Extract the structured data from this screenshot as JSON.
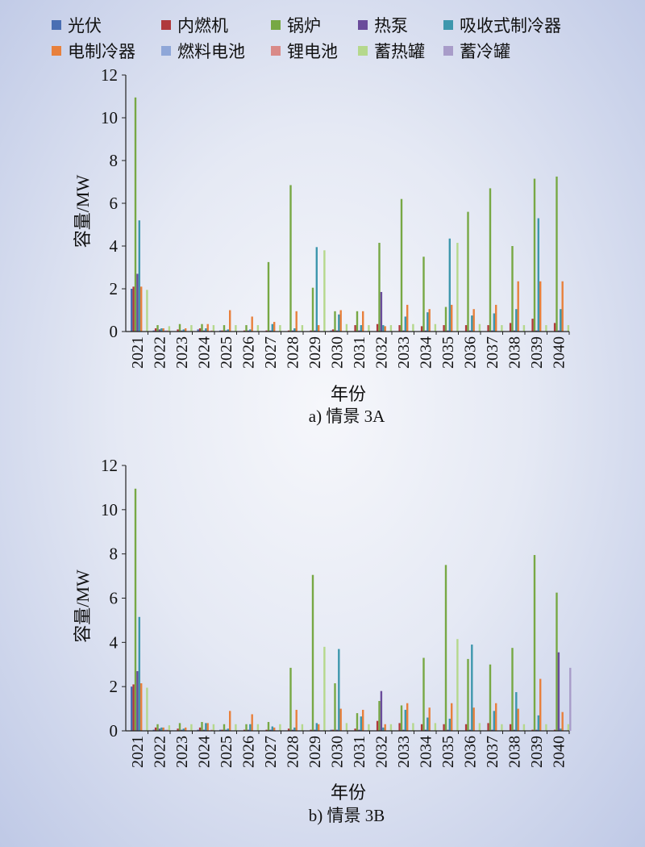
{
  "legend": [
    {
      "name": "光伏",
      "color": "#4a6fb3"
    },
    {
      "name": "内燃机",
      "color": "#b0393c"
    },
    {
      "name": "锅炉",
      "color": "#77a844"
    },
    {
      "name": "热泵",
      "color": "#6a4c9b"
    },
    {
      "name": "吸收式制冷器",
      "color": "#3e97ad"
    },
    {
      "name": "电制冷器",
      "color": "#e8803c"
    },
    {
      "name": "燃料电池",
      "color": "#8fa7d8"
    },
    {
      "name": "锂电池",
      "color": "#d98a88"
    },
    {
      "name": "蓄热罐",
      "color": "#b5d88c"
    },
    {
      "name": "蓄冷罐",
      "color": "#a89cc9"
    }
  ],
  "chart_data": [
    {
      "type": "bar",
      "caption": "a) 情景 3A",
      "xlabel": "年份",
      "ylabel": "容量/MW",
      "ylim": [
        0,
        12
      ],
      "yticks": [
        "0",
        "2",
        "4",
        "6",
        "8",
        "10",
        "12"
      ],
      "categories": [
        "2021",
        "2022",
        "2023",
        "2024",
        "2025",
        "2026",
        "2027",
        "2028",
        "2029",
        "2030",
        "2031",
        "2032",
        "2033",
        "2034",
        "2035",
        "2036",
        "2037",
        "2038",
        "2039",
        "2040"
      ],
      "series": [
        {
          "name": "光伏",
          "values": [
            2.0,
            0.05,
            0,
            0.1,
            0.05,
            0,
            0,
            0,
            0,
            0.05,
            0,
            0,
            0,
            0,
            0,
            0,
            0,
            0,
            0,
            0
          ]
        },
        {
          "name": "内燃机",
          "values": [
            2.1,
            0.15,
            0.1,
            0.15,
            0.05,
            0.05,
            0.05,
            0.05,
            0.05,
            0.1,
            0.3,
            0.35,
            0.3,
            0.25,
            0.3,
            0.3,
            0.3,
            0.4,
            0.6,
            0.4
          ]
        },
        {
          "name": "锅炉",
          "values": [
            10.95,
            0.3,
            0.35,
            0.35,
            0.3,
            0.3,
            3.25,
            6.85,
            2.05,
            0.95,
            0.95,
            4.15,
            6.2,
            3.5,
            1.15,
            5.6,
            6.7,
            4.0,
            7.15,
            7.25
          ]
        },
        {
          "name": "热泵",
          "values": [
            2.7,
            0.1,
            0.05,
            0.05,
            0.05,
            0.05,
            0.05,
            0.05,
            0.05,
            0.05,
            0.05,
            1.85,
            0.05,
            0.05,
            0.05,
            0.05,
            0.05,
            0.05,
            0.05,
            0.05
          ]
        },
        {
          "name": "吸收式制冷器",
          "values": [
            5.2,
            0.15,
            0.1,
            0.15,
            0.1,
            0.1,
            0.35,
            0.15,
            3.95,
            0.8,
            0.3,
            0.3,
            0.7,
            0.9,
            4.35,
            0.75,
            0.85,
            1.05,
            5.3,
            1.05
          ]
        },
        {
          "name": "电制冷器",
          "values": [
            2.1,
            0.15,
            0.15,
            0.35,
            1.0,
            0.7,
            0.45,
            0.95,
            0.3,
            1.0,
            0.95,
            0.25,
            1.25,
            1.05,
            1.25,
            1.05,
            1.25,
            2.35,
            2.35,
            2.35
          ]
        },
        {
          "name": "燃料电池",
          "values": [
            0,
            0.05,
            0,
            0,
            0,
            0,
            0,
            0,
            0,
            0,
            0,
            0,
            0,
            0,
            0,
            0,
            0,
            0,
            0,
            0
          ]
        },
        {
          "name": "锂电池",
          "values": [
            0,
            0.05,
            0,
            0.05,
            0,
            0,
            0,
            0,
            0,
            0,
            0,
            0,
            0,
            0,
            0,
            0,
            0,
            0,
            0,
            0
          ]
        },
        {
          "name": "蓄热罐",
          "values": [
            1.95,
            0.25,
            0.3,
            0.3,
            0.3,
            0.3,
            0.3,
            0.3,
            3.8,
            0.35,
            0.3,
            0.3,
            0.35,
            0.35,
            4.15,
            0.35,
            0.3,
            0.3,
            0.3,
            0.3
          ]
        },
        {
          "name": "蓄冷罐",
          "values": [
            0,
            0,
            0,
            0,
            0,
            0,
            0,
            0,
            0,
            0,
            0,
            0,
            0,
            0,
            0,
            0,
            0,
            0,
            0,
            0
          ]
        }
      ]
    },
    {
      "type": "bar",
      "caption": "b) 情景 3B",
      "xlabel": "年份",
      "ylabel": "容量/MW",
      "ylim": [
        0,
        12
      ],
      "yticks": [
        "0",
        "2",
        "4",
        "6",
        "8",
        "10",
        "12"
      ],
      "categories": [
        "2021",
        "2022",
        "2023",
        "2024",
        "2025",
        "2026",
        "2027",
        "2028",
        "2029",
        "2030",
        "2031",
        "2032",
        "2033",
        "2034",
        "2035",
        "2036",
        "2037",
        "2038",
        "2039",
        "2040"
      ],
      "series": [
        {
          "name": "光伏",
          "values": [
            2.0,
            0.05,
            0,
            0.05,
            0.05,
            0,
            0,
            0,
            0,
            0.05,
            0,
            0,
            0,
            0,
            0,
            0,
            0,
            0,
            0,
            0
          ]
        },
        {
          "name": "内燃机",
          "values": [
            2.1,
            0.15,
            0.1,
            0.15,
            0.05,
            0.05,
            0.05,
            0.1,
            0.05,
            0.05,
            0.1,
            0.45,
            0.35,
            0.3,
            0.3,
            0.3,
            0.35,
            0.3,
            0.05,
            0.05
          ]
        },
        {
          "name": "锅炉",
          "values": [
            10.95,
            0.3,
            0.35,
            0.4,
            0.3,
            0.3,
            0.4,
            2.85,
            7.05,
            2.15,
            0.8,
            1.35,
            1.15,
            3.3,
            7.5,
            3.25,
            3.0,
            3.75,
            7.95,
            6.25
          ]
        },
        {
          "name": "热泵",
          "values": [
            2.7,
            0.1,
            0.05,
            0.05,
            0.05,
            0.05,
            0.05,
            0.05,
            0.05,
            0.05,
            0.05,
            1.8,
            0.05,
            0.05,
            0.05,
            0.05,
            0.05,
            0.05,
            0.05,
            3.55
          ]
        },
        {
          "name": "吸收式制冷器",
          "values": [
            5.15,
            0.15,
            0.1,
            0.35,
            0.1,
            0.3,
            0.2,
            0.15,
            0.35,
            3.7,
            0.65,
            0.15,
            0.95,
            0.6,
            0.55,
            3.9,
            0.9,
            1.75,
            0.7,
            0.1
          ]
        },
        {
          "name": "电制冷器",
          "values": [
            2.15,
            0.15,
            0.15,
            0.35,
            0.9,
            0.75,
            0.15,
            0.95,
            0.3,
            1.0,
            0.95,
            0.3,
            1.25,
            1.05,
            1.25,
            1.05,
            1.25,
            1.0,
            2.35,
            0.85
          ]
        },
        {
          "name": "燃料电池",
          "values": [
            0,
            0.05,
            0,
            0,
            0,
            0,
            0,
            0,
            0,
            0,
            0,
            0,
            0,
            0,
            0,
            0,
            0,
            0,
            0,
            0
          ]
        },
        {
          "name": "锂电池",
          "values": [
            0,
            0.05,
            0,
            0.05,
            0,
            0,
            0,
            0,
            0,
            0,
            0,
            0,
            0,
            0,
            0,
            0,
            0,
            0,
            0,
            0
          ]
        },
        {
          "name": "蓄热罐",
          "values": [
            1.95,
            0.25,
            0.3,
            0.3,
            0.3,
            0.3,
            0.3,
            0.3,
            3.8,
            0.35,
            0.3,
            0.3,
            0.35,
            0.35,
            4.15,
            0.35,
            0.3,
            0.3,
            0.3,
            0.3
          ]
        },
        {
          "name": "蓄冷罐",
          "values": [
            0,
            0,
            0,
            0,
            0,
            0,
            0,
            0,
            0,
            0,
            0,
            0,
            0,
            0,
            0,
            0,
            0,
            0,
            0,
            2.85
          ]
        }
      ]
    }
  ]
}
